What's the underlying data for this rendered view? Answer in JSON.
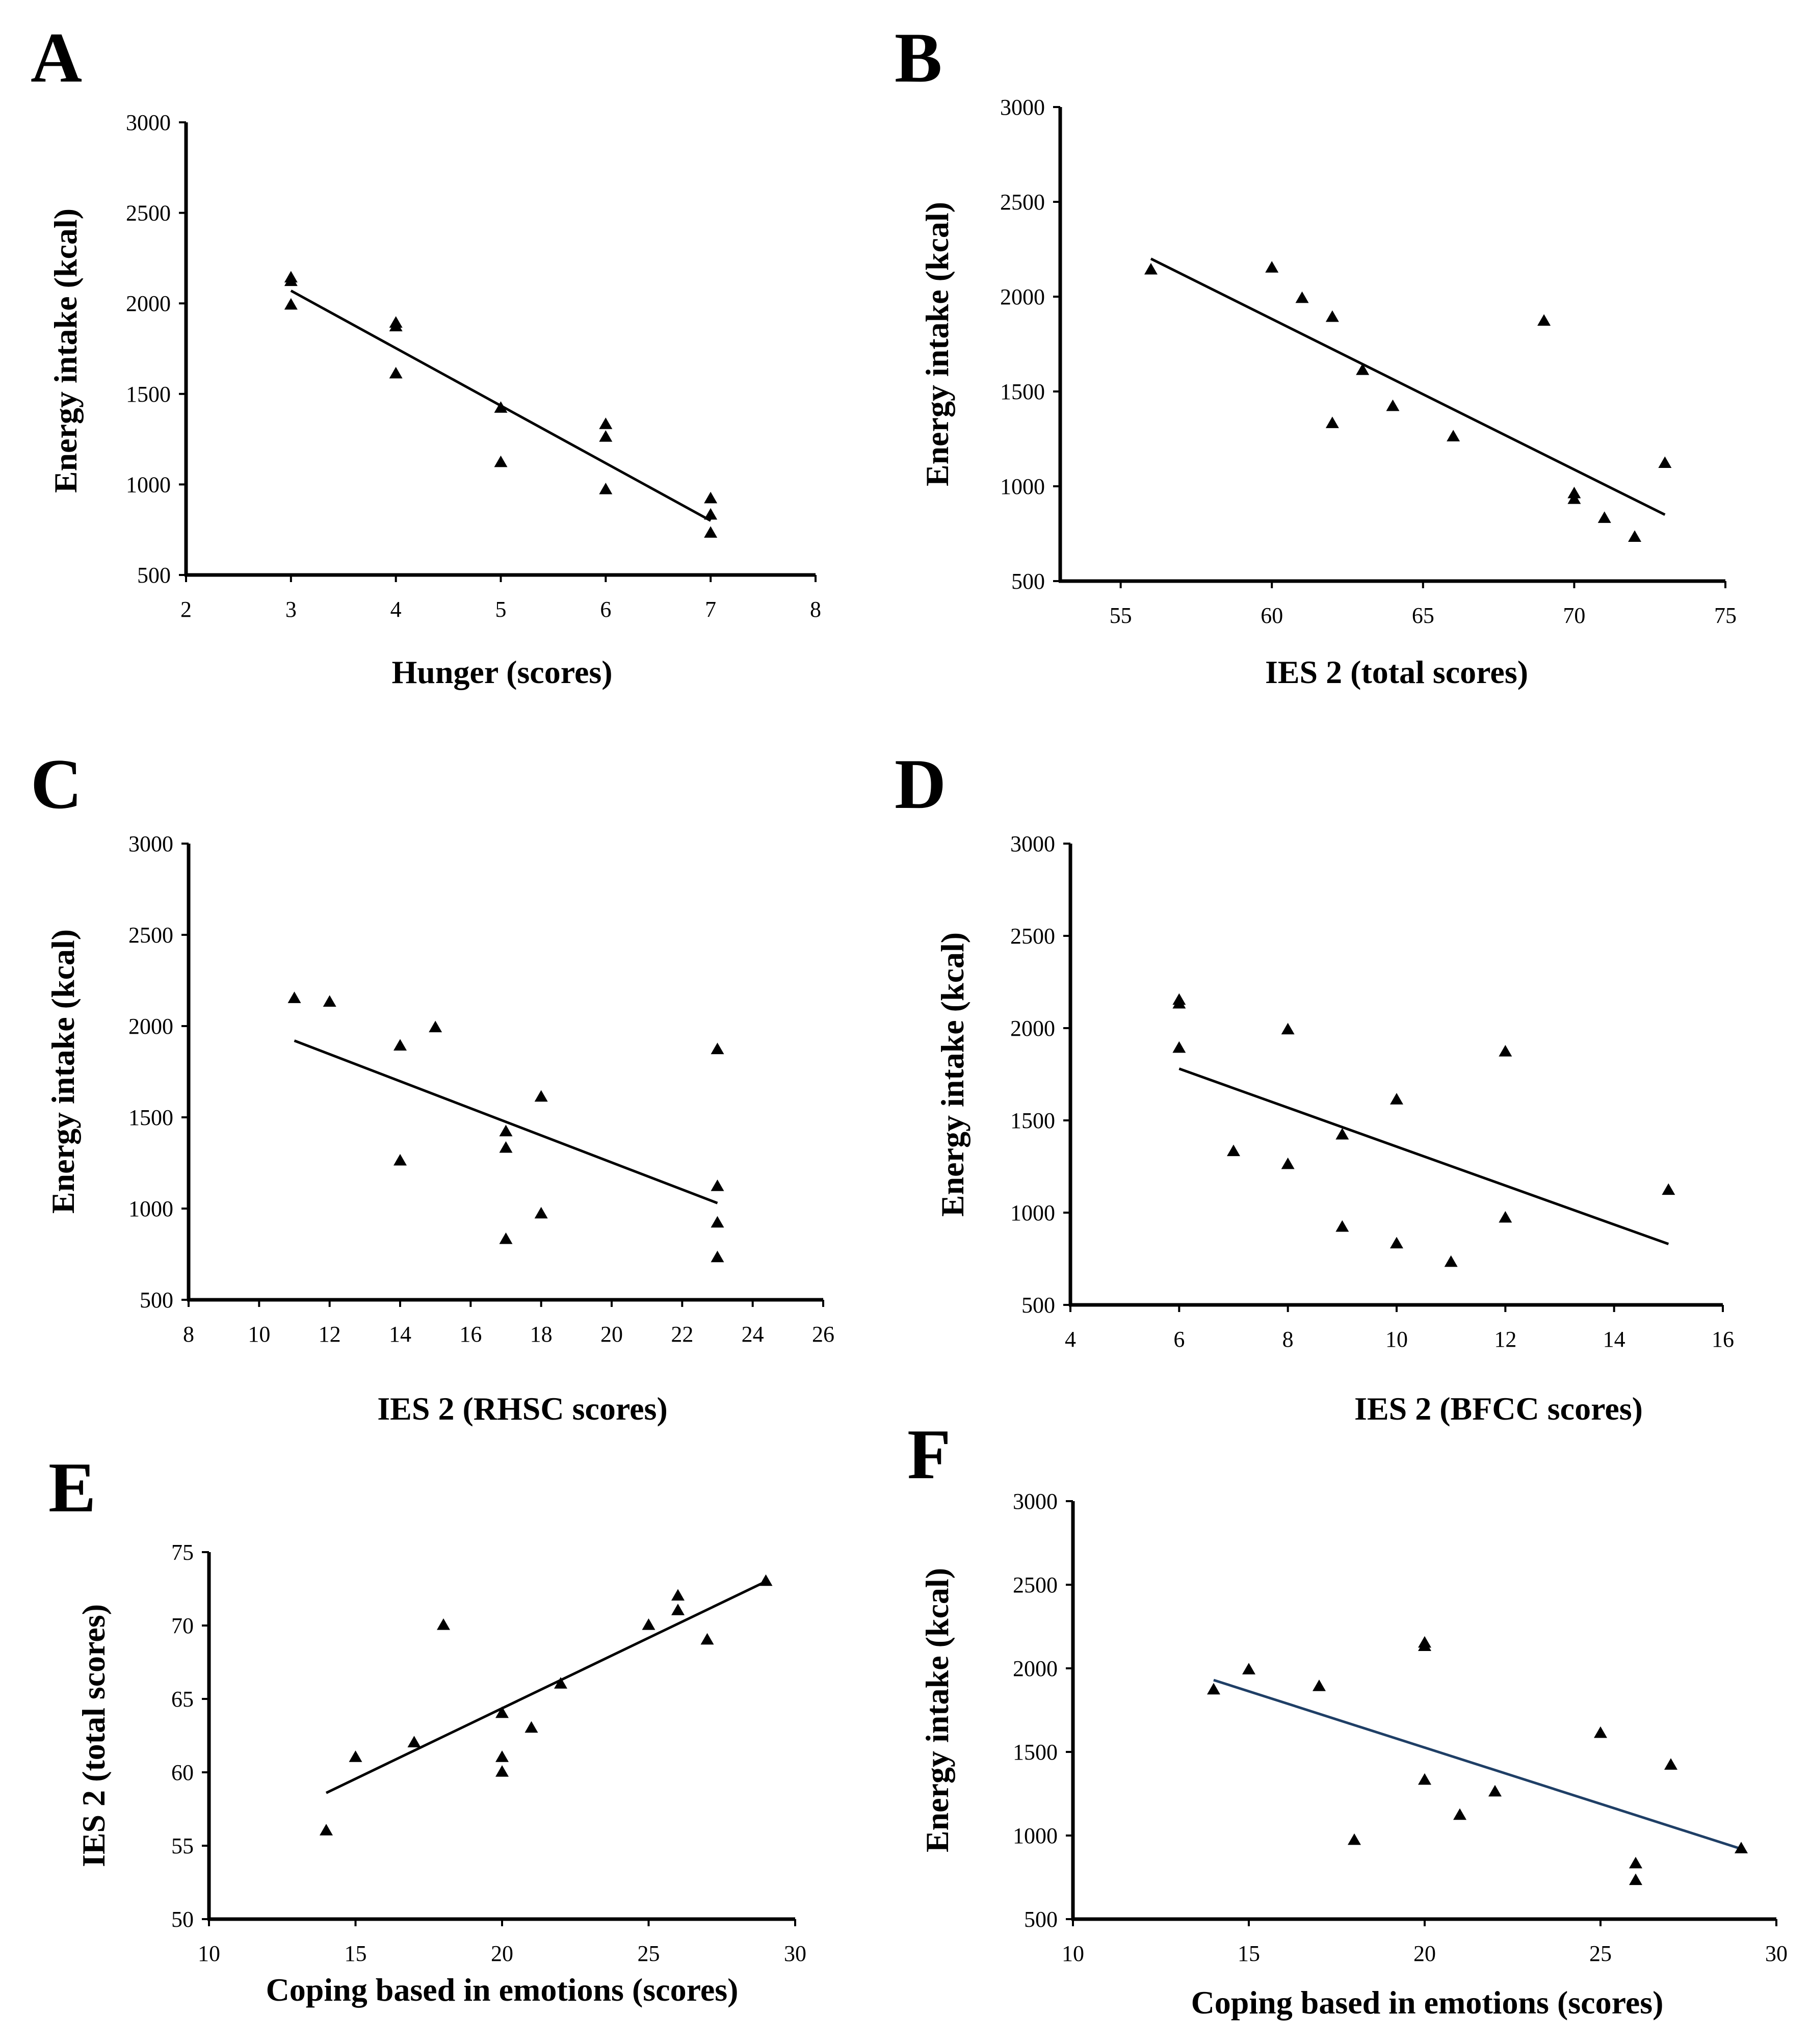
{
  "chart_data": [
    {
      "panel": "A",
      "type": "scatter",
      "xlabel": "Hunger (scores)",
      "ylabel": "Energy intake (kcal)",
      "xlim": [
        2,
        8
      ],
      "ylim": [
        500,
        3000
      ],
      "xticks": [
        2,
        3,
        4,
        5,
        6,
        7,
        8
      ],
      "yticks": [
        500,
        1000,
        1500,
        2000,
        2500,
        3000
      ],
      "points": [
        {
          "x": 3,
          "y": 2140
        },
        {
          "x": 3,
          "y": 2120
        },
        {
          "x": 3,
          "y": 1990
        },
        {
          "x": 4,
          "y": 1890
        },
        {
          "x": 4,
          "y": 1870
        },
        {
          "x": 4,
          "y": 1610
        },
        {
          "x": 5,
          "y": 1420
        },
        {
          "x": 5,
          "y": 1120
        },
        {
          "x": 6,
          "y": 1330
        },
        {
          "x": 6,
          "y": 1260
        },
        {
          "x": 6,
          "y": 970
        },
        {
          "x": 7,
          "y": 920
        },
        {
          "x": 7,
          "y": 830
        },
        {
          "x": 7,
          "y": 730
        }
      ],
      "trendline": {
        "x": [
          3,
          7
        ],
        "y": [
          2070,
          800
        ]
      },
      "trend_color": "#000000"
    },
    {
      "panel": "B",
      "type": "scatter",
      "xlabel": "IES 2 (total scores)",
      "ylabel": "Energy intake (kcal)",
      "xlim": [
        53,
        75
      ],
      "ylim": [
        500,
        3000
      ],
      "xticks": [
        55,
        60,
        65,
        70,
        75
      ],
      "yticks": [
        500,
        1000,
        1500,
        2000,
        2500,
        3000
      ],
      "points": [
        {
          "x": 56,
          "y": 2140
        },
        {
          "x": 60,
          "y": 2150
        },
        {
          "x": 61,
          "y": 1990
        },
        {
          "x": 62,
          "y": 1890
        },
        {
          "x": 62,
          "y": 1330
        },
        {
          "x": 63,
          "y": 1610
        },
        {
          "x": 64,
          "y": 1420
        },
        {
          "x": 66,
          "y": 1260
        },
        {
          "x": 69,
          "y": 1870
        },
        {
          "x": 70,
          "y": 960
        },
        {
          "x": 70,
          "y": 930
        },
        {
          "x": 71,
          "y": 830
        },
        {
          "x": 72,
          "y": 730
        },
        {
          "x": 73,
          "y": 1120
        }
      ],
      "trendline": {
        "x": [
          56,
          73
        ],
        "y": [
          2200,
          850
        ]
      },
      "trend_color": "#000000"
    },
    {
      "panel": "C",
      "type": "scatter",
      "xlabel": "IES 2 (RHSC scores)",
      "ylabel": "Energy intake (kcal)",
      "xlim": [
        8,
        26
      ],
      "ylim": [
        500,
        3000
      ],
      "xticks": [
        8,
        10,
        12,
        14,
        16,
        18,
        20,
        22,
        24,
        26
      ],
      "yticks": [
        500,
        1000,
        1500,
        2000,
        2500,
        3000
      ],
      "points": [
        {
          "x": 11,
          "y": 2150
        },
        {
          "x": 12,
          "y": 2130
        },
        {
          "x": 14,
          "y": 1890
        },
        {
          "x": 14,
          "y": 1260
        },
        {
          "x": 15,
          "y": 1990
        },
        {
          "x": 17,
          "y": 1420
        },
        {
          "x": 17,
          "y": 1330
        },
        {
          "x": 17,
          "y": 830
        },
        {
          "x": 18,
          "y": 1610
        },
        {
          "x": 18,
          "y": 970
        },
        {
          "x": 23,
          "y": 1870
        },
        {
          "x": 23,
          "y": 1120
        },
        {
          "x": 23,
          "y": 920
        },
        {
          "x": 23,
          "y": 730
        }
      ],
      "trendline": {
        "x": [
          11,
          23
        ],
        "y": [
          1920,
          1030
        ]
      },
      "trend_color": "#000000"
    },
    {
      "panel": "D",
      "type": "scatter",
      "xlabel": "IES 2 (BFCC scores)",
      "ylabel": "Energy intake (kcal)",
      "xlim": [
        4,
        16
      ],
      "ylim": [
        500,
        3000
      ],
      "xticks": [
        4,
        6,
        8,
        10,
        12,
        14,
        16
      ],
      "yticks": [
        500,
        1000,
        1500,
        2000,
        2500,
        3000
      ],
      "points": [
        {
          "x": 6,
          "y": 2150
        },
        {
          "x": 6,
          "y": 2130
        },
        {
          "x": 6,
          "y": 1890
        },
        {
          "x": 7,
          "y": 1330
        },
        {
          "x": 8,
          "y": 1990
        },
        {
          "x": 8,
          "y": 1260
        },
        {
          "x": 9,
          "y": 1420
        },
        {
          "x": 9,
          "y": 920
        },
        {
          "x": 10,
          "y": 1610
        },
        {
          "x": 10,
          "y": 830
        },
        {
          "x": 11,
          "y": 730
        },
        {
          "x": 12,
          "y": 1870
        },
        {
          "x": 12,
          "y": 970
        },
        {
          "x": 15,
          "y": 1120
        }
      ],
      "trendline": {
        "x": [
          6,
          15
        ],
        "y": [
          1780,
          830
        ]
      },
      "trend_color": "#000000"
    },
    {
      "panel": "E",
      "type": "scatter",
      "xlabel": "Coping based in emotions (scores)",
      "ylabel": "IES 2 (total scores)",
      "xlim": [
        10,
        30
      ],
      "ylim": [
        50,
        75
      ],
      "xticks": [
        10,
        15,
        20,
        25,
        30
      ],
      "yticks": [
        50,
        55,
        60,
        65,
        70,
        75
      ],
      "points": [
        {
          "x": 14,
          "y": 56
        },
        {
          "x": 15,
          "y": 61
        },
        {
          "x": 17,
          "y": 62
        },
        {
          "x": 18,
          "y": 70
        },
        {
          "x": 20,
          "y": 64
        },
        {
          "x": 20,
          "y": 61
        },
        {
          "x": 20,
          "y": 60
        },
        {
          "x": 21,
          "y": 63
        },
        {
          "x": 22,
          "y": 66
        },
        {
          "x": 25,
          "y": 70
        },
        {
          "x": 26,
          "y": 72
        },
        {
          "x": 26,
          "y": 71
        },
        {
          "x": 27,
          "y": 69
        },
        {
          "x": 29,
          "y": 73
        }
      ],
      "trendline": {
        "x": [
          14,
          29
        ],
        "y": [
          58.6,
          73
        ]
      },
      "trend_color": "#000000"
    },
    {
      "panel": "F",
      "type": "scatter",
      "xlabel": "Coping based in emotions (scores)",
      "ylabel": "Energy intake (kcal)",
      "xlim": [
        10,
        30
      ],
      "ylim": [
        500,
        3000
      ],
      "xticks": [
        10,
        15,
        20,
        25,
        30
      ],
      "yticks": [
        500,
        1000,
        1500,
        2000,
        2500,
        3000
      ],
      "points": [
        {
          "x": 14,
          "y": 1870
        },
        {
          "x": 15,
          "y": 1990
        },
        {
          "x": 17,
          "y": 1890
        },
        {
          "x": 18,
          "y": 970
        },
        {
          "x": 20,
          "y": 2150
        },
        {
          "x": 20,
          "y": 2130
        },
        {
          "x": 20,
          "y": 1330
        },
        {
          "x": 21,
          "y": 1120
        },
        {
          "x": 22,
          "y": 1260
        },
        {
          "x": 25,
          "y": 1610
        },
        {
          "x": 26,
          "y": 830
        },
        {
          "x": 26,
          "y": 730
        },
        {
          "x": 27,
          "y": 1420
        },
        {
          "x": 29,
          "y": 920
        }
      ],
      "trendline": {
        "x": [
          14,
          29
        ],
        "y": [
          1930,
          920
        ]
      },
      "trend_color": "#1f3f66"
    }
  ]
}
